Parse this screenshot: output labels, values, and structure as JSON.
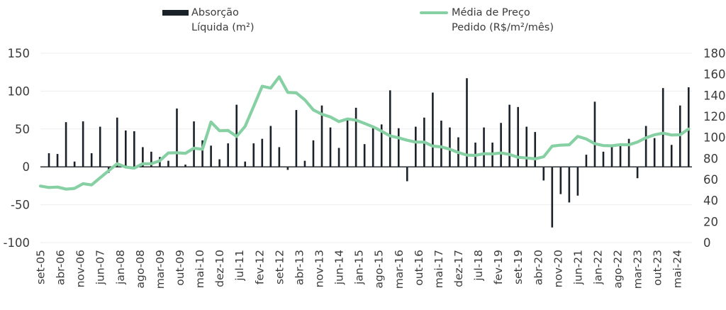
{
  "chart_data": {
    "type": "bar+line",
    "title": "",
    "legend_position": "top",
    "series": [
      {
        "name_line1": "Absorção",
        "name_line2": "Líquida (m²)",
        "type": "bar",
        "axis": "left",
        "color": "#1b2129",
        "start_period_index": 1,
        "values": [
          18,
          17,
          59,
          7,
          60,
          18,
          53,
          -8,
          65,
          48,
          47,
          26,
          20,
          13,
          8,
          77,
          3,
          60,
          35,
          28,
          10,
          31,
          82,
          7,
          31,
          37,
          54,
          26,
          -4,
          75,
          8,
          35,
          81,
          52,
          25,
          62,
          78,
          30,
          51,
          56,
          101,
          51,
          -19,
          53,
          65,
          98,
          61,
          52,
          39,
          117,
          32,
          52,
          32,
          58,
          82,
          79,
          53,
          46,
          -18,
          -80,
          -36,
          -47,
          -38,
          16,
          86,
          20,
          27,
          28,
          37,
          -15,
          54,
          38,
          104,
          29,
          81,
          105
        ]
      },
      {
        "name_line1": "Média de Preço",
        "name_line2": "Pedido (R$/m²/mês)",
        "type": "line",
        "axis": "right",
        "color": "#86d0a3",
        "start_period_index": 0,
        "values": [
          53.7,
          52.4,
          52.8,
          50.8,
          51.5,
          56.0,
          54.8,
          61.6,
          68.3,
          75.0,
          71.7,
          70.8,
          75.0,
          75.0,
          77.8,
          85.2,
          85.4,
          84.8,
          89.7,
          88.8,
          114.6,
          106.3,
          106.5,
          100.9,
          110.4,
          129.5,
          148.6,
          146.8,
          157.6,
          142.7,
          142.3,
          135.7,
          126.1,
          122.0,
          119.4,
          115.0,
          117.5,
          116.4,
          113.3,
          110.0,
          105.9,
          101.4,
          99.6,
          97.3,
          95.5,
          95.5,
          91.7,
          91.0,
          88.8,
          85.6,
          83.2,
          82.9,
          84.5,
          84.3,
          85.2,
          83.8,
          81.1,
          80.4,
          79.6,
          81.6,
          91.7,
          92.6,
          93.0,
          101.0,
          98.5,
          94.0,
          92.2,
          92.0,
          93.1,
          93.0,
          95.5,
          99.6,
          102.5,
          104.0,
          102.3,
          102.5,
          108.0
        ]
      }
    ],
    "x_periodicity_months": 3,
    "x_first_period": "set-05",
    "x_tick_step_months": 7,
    "x_tick_labels": [
      "set-05",
      "abr-06",
      "nov-06",
      "jun-07",
      "jan-08",
      "ago-08",
      "mar-09",
      "out-09",
      "mai-10",
      "dez-10",
      "jul-11",
      "fev-12",
      "set-12",
      "abr-13",
      "nov-13",
      "jun-14",
      "jan-15",
      "ago-15",
      "mar-16",
      "out-16",
      "mai-17",
      "dez-17",
      "jul-18",
      "fev-19",
      "set-19",
      "abr-20",
      "nov-20",
      "jun-21",
      "jan-22",
      "ago-22",
      "mar-23",
      "out-23",
      "mai-24"
    ],
    "y_left": {
      "label": "",
      "ylim": [
        -100,
        150
      ],
      "ticks": [
        150,
        100,
        50,
        0,
        -50,
        -100
      ]
    },
    "y_right": {
      "label": "",
      "ylim": [
        0,
        180
      ],
      "ticks": [
        180,
        160,
        140,
        120,
        100,
        80,
        60,
        40,
        20,
        0
      ]
    },
    "grid": true
  }
}
